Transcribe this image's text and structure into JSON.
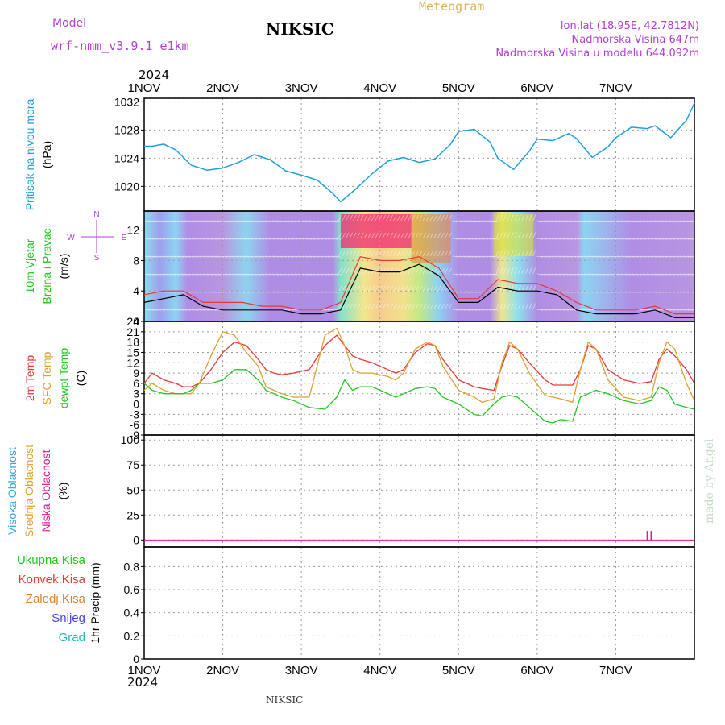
{
  "header": {
    "model_label": "Model",
    "model_name": "wrf-nmm_v3.9.1  e1km",
    "station": "NIKSIC",
    "product": "Meteogram",
    "coords": "lon,lat (18.95E, 42.7812N)",
    "elevation": "Nadmorska Visina 647m",
    "model_elevation": "Nadmorska Visina u modelu 644.092m",
    "footer_station": "NIKSIC",
    "credit": "made by Angel",
    "year": "2024"
  },
  "colors": {
    "pressure": "#1ea0e0",
    "t2m": "#e83838",
    "sfc": "#e0a030",
    "dew": "#20c820",
    "high_cloud": "#30a8e0",
    "mid_cloud": "#e0a030",
    "low_cloud": "#e01890",
    "purple": "#b040d0",
    "grid": "#9a9a9a"
  },
  "chart_data": [
    {
      "type": "line",
      "panel": "pressure",
      "ylabel_lines": [
        "Pritisak na nivou mora",
        "(hPa)"
      ],
      "ylabel_colors": [
        "#1ea0e0",
        "#000000"
      ],
      "x_ticks": [
        "1NOV",
        "2NOV",
        "3NOV",
        "4NOV",
        "5NOV",
        "6NOV",
        "7NOV"
      ],
      "ylim": [
        1016.5,
        1032.5
      ],
      "yticks": [
        1020,
        1024,
        1028,
        1032
      ],
      "x": [
        0,
        0.1,
        0.25,
        0.4,
        0.6,
        0.8,
        1.0,
        1.2,
        1.4,
        1.6,
        1.8,
        2.0,
        2.2,
        2.4,
        2.5,
        2.7,
        2.9,
        3.1,
        3.3,
        3.5,
        3.7,
        3.9,
        4.0,
        4.2,
        4.4,
        4.5,
        4.7,
        4.9,
        5.0,
        5.2,
        5.4,
        5.5,
        5.7,
        5.9,
        6.0,
        6.2,
        6.4,
        6.5,
        6.7,
        6.9,
        7.0
      ],
      "series": [
        {
          "values": [
            1025.7,
            1025.7,
            1026.0,
            1025.2,
            1023.0,
            1022.3,
            1022.6,
            1023.4,
            1024.5,
            1023.8,
            1022.2,
            1021.6,
            1020.9,
            1019.0,
            1017.8,
            1019.7,
            1021.8,
            1023.6,
            1024.1,
            1023.4,
            1023.9,
            1026.0,
            1027.8,
            1028.1,
            1026.3,
            1024.0,
            1022.4,
            1025.0,
            1026.7,
            1026.5,
            1027.5,
            1026.8,
            1024.1,
            1025.6,
            1026.9,
            1028.4,
            1028.2,
            1028.6,
            1026.9,
            1029.4,
            1031.8
          ]
        }
      ]
    },
    {
      "type": "line",
      "panel": "wind",
      "ylabel_lines": [
        "10m Vjetar",
        "Brzina i Pravac",
        "(m/s)"
      ],
      "ylabel_colors": [
        "#20c820",
        "#20c820",
        "#000000"
      ],
      "compass": {
        "n": "N",
        "s": "S",
        "w": "W",
        "e": "E"
      },
      "ylim": [
        0,
        14.5
      ],
      "yticks": [
        0,
        4,
        8,
        12
      ],
      "x": [
        0,
        0.25,
        0.5,
        0.75,
        1.0,
        1.25,
        1.5,
        1.75,
        2.0,
        2.25,
        2.5,
        2.75,
        3.0,
        3.25,
        3.5,
        3.75,
        4.0,
        4.25,
        4.5,
        4.75,
        5.0,
        5.25,
        5.5,
        5.75,
        6.0,
        6.25,
        6.5,
        6.75,
        7.0
      ],
      "series": [
        {
          "name": "speed",
          "values": [
            2.5,
            3.0,
            3.5,
            2.0,
            1.5,
            1.5,
            1.5,
            1.5,
            1.0,
            1.0,
            1.5,
            7.0,
            6.5,
            6.5,
            7.5,
            6.0,
            2.5,
            2.5,
            4.5,
            4.0,
            4.0,
            3.5,
            1.5,
            1.0,
            1.0,
            1.0,
            1.5,
            0.5,
            0.5
          ]
        },
        {
          "name": "gust",
          "values": [
            3.5,
            4.0,
            4.0,
            2.5,
            2.5,
            2.5,
            2.0,
            2.0,
            1.5,
            1.5,
            2.5,
            8.5,
            8.0,
            8.0,
            8.5,
            7.0,
            3.0,
            3.0,
            5.5,
            5.0,
            5.0,
            4.0,
            2.5,
            1.5,
            1.5,
            1.5,
            2.0,
            1.0,
            1.0
          ]
        }
      ]
    },
    {
      "type": "line",
      "panel": "temperature",
      "ylabel_lines": [
        "2m Temp",
        "SFC Temp",
        "dewpt Temp",
        "(C)"
      ],
      "ylabel_colors": [
        "#e83838",
        "#e0a030",
        "#20c820",
        "#000000"
      ],
      "ylim": [
        -9,
        24
      ],
      "yticks": [
        -9,
        -6,
        -3,
        0,
        3,
        6,
        9,
        12,
        15,
        18,
        21,
        24
      ],
      "x": [
        0,
        0.1,
        0.25,
        0.4,
        0.5,
        0.6,
        0.7,
        0.85,
        1.0,
        1.15,
        1.3,
        1.45,
        1.55,
        1.65,
        1.75,
        1.9,
        2.1,
        2.3,
        2.45,
        2.55,
        2.65,
        2.75,
        2.9,
        3.1,
        3.2,
        3.3,
        3.45,
        3.6,
        3.7,
        3.8,
        4.0,
        4.2,
        4.3,
        4.45,
        4.55,
        4.65,
        4.75,
        4.9,
        5.1,
        5.2,
        5.3,
        5.45,
        5.55,
        5.65,
        5.75,
        5.9,
        6.1,
        6.3,
        6.45,
        6.55,
        6.65,
        6.75,
        6.9,
        7.0
      ],
      "series": [
        {
          "name": "2m",
          "values": [
            6,
            9,
            7,
            6,
            5,
            5,
            6,
            10,
            15,
            18,
            17,
            13,
            10,
            9,
            8.5,
            9,
            10,
            17,
            20,
            17,
            14,
            13,
            12,
            10,
            9,
            10,
            15,
            17.5,
            17,
            13,
            7,
            5,
            4.5,
            4,
            11,
            17,
            16,
            12,
            7,
            5.5,
            5.5,
            5.5,
            10,
            17,
            16,
            10,
            7,
            6,
            6.5,
            13,
            16,
            14,
            10,
            6
          ]
        },
        {
          "name": "sfc",
          "values": [
            4,
            6,
            4,
            3,
            3,
            3,
            6,
            14,
            21,
            20,
            15,
            11,
            5,
            4,
            3,
            2,
            2,
            20,
            22,
            17,
            10,
            9,
            9,
            8,
            7,
            9,
            16,
            18,
            17,
            11,
            4,
            2,
            0.5,
            1.5,
            12,
            18,
            16,
            9,
            2.5,
            2,
            1.5,
            0.5,
            10,
            18,
            16,
            7,
            2,
            1,
            2,
            12,
            18,
            16,
            6,
            1
          ]
        },
        {
          "name": "dew",
          "values": [
            6,
            4,
            3,
            3,
            3,
            4,
            6,
            6,
            7,
            10,
            10,
            7,
            4,
            3,
            2,
            1,
            -1,
            -1.5,
            2,
            7,
            4,
            5,
            5,
            3,
            2,
            3,
            4.5,
            5,
            4.5,
            2,
            0,
            -3,
            -3.5,
            0,
            2,
            2.5,
            2,
            -1,
            -5,
            -5.5,
            -4.5,
            -5,
            2,
            3,
            4,
            3,
            1,
            0,
            1,
            5,
            4,
            0,
            -1,
            -1.5
          ]
        }
      ]
    },
    {
      "type": "bar",
      "panel": "cloud",
      "ylabel_lines": [
        "Visoka Oblacnost",
        "Srednja Oblacnost",
        "Niska Oblacnost",
        "(%)"
      ],
      "ylabel_colors": [
        "#30a8e0",
        "#e0a030",
        "#e01890",
        "#000000"
      ],
      "ylim": [
        -7,
        105
      ],
      "yticks": [
        0,
        25,
        50,
        75,
        100
      ],
      "series": [
        {
          "name": "Niska Oblacnost",
          "x": [
            6.4,
            6.45
          ],
          "values": [
            9,
            9
          ]
        }
      ]
    },
    {
      "type": "bar",
      "panel": "precip",
      "ylabel_lines": [
        "1hr Precip (mm)"
      ],
      "legend": [
        "Ukupna Kisa",
        "Konvek.Kisa",
        "Zaledj.Kisa",
        "Snijeg",
        "Grad"
      ],
      "legend_colors": [
        "#20c820",
        "#e83838",
        "#e08030",
        "#4848e0",
        "#20b8b0"
      ],
      "ylim": [
        0,
        0.97
      ],
      "yticks": [
        0,
        0.2,
        0.4,
        0.6,
        0.8
      ],
      "ytick_labels": [
        "0",
        "0.2",
        "0.4",
        "0.6",
        "0.8"
      ],
      "x_ticks": [
        "1NOV",
        "2NOV",
        "3NOV",
        "4NOV",
        "5NOV",
        "6NOV",
        "7NOV"
      ],
      "series": []
    }
  ]
}
